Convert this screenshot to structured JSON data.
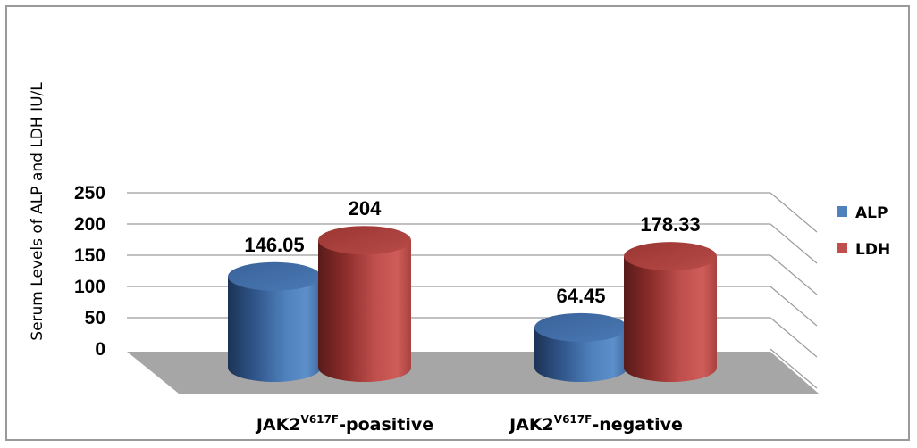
{
  "chart_data": {
    "type": "bar",
    "style": "3d-cylinder",
    "ylabel": "Serum Levels of ALP and LDH IU/L",
    "ylim": [
      0,
      250
    ],
    "yticks": [
      0,
      50,
      100,
      150,
      200,
      250
    ],
    "categories": [
      {
        "main": "JAK2",
        "sup": "V617F",
        "suffix": "-poasitive"
      },
      {
        "main": "JAK2",
        "sup": "V617F",
        "suffix": "-negative"
      }
    ],
    "series": [
      {
        "name": "ALP",
        "color": "#4f81bd",
        "values": [
          146.05,
          64.45
        ],
        "labels": [
          "146.05",
          "64.45"
        ]
      },
      {
        "name": "LDH",
        "color": "#c0504d",
        "values": [
          204,
          178.33
        ],
        "labels": [
          "204",
          "178.33"
        ]
      }
    ],
    "grid": true,
    "legend": "right",
    "floor_color": "#a6a6a6"
  }
}
